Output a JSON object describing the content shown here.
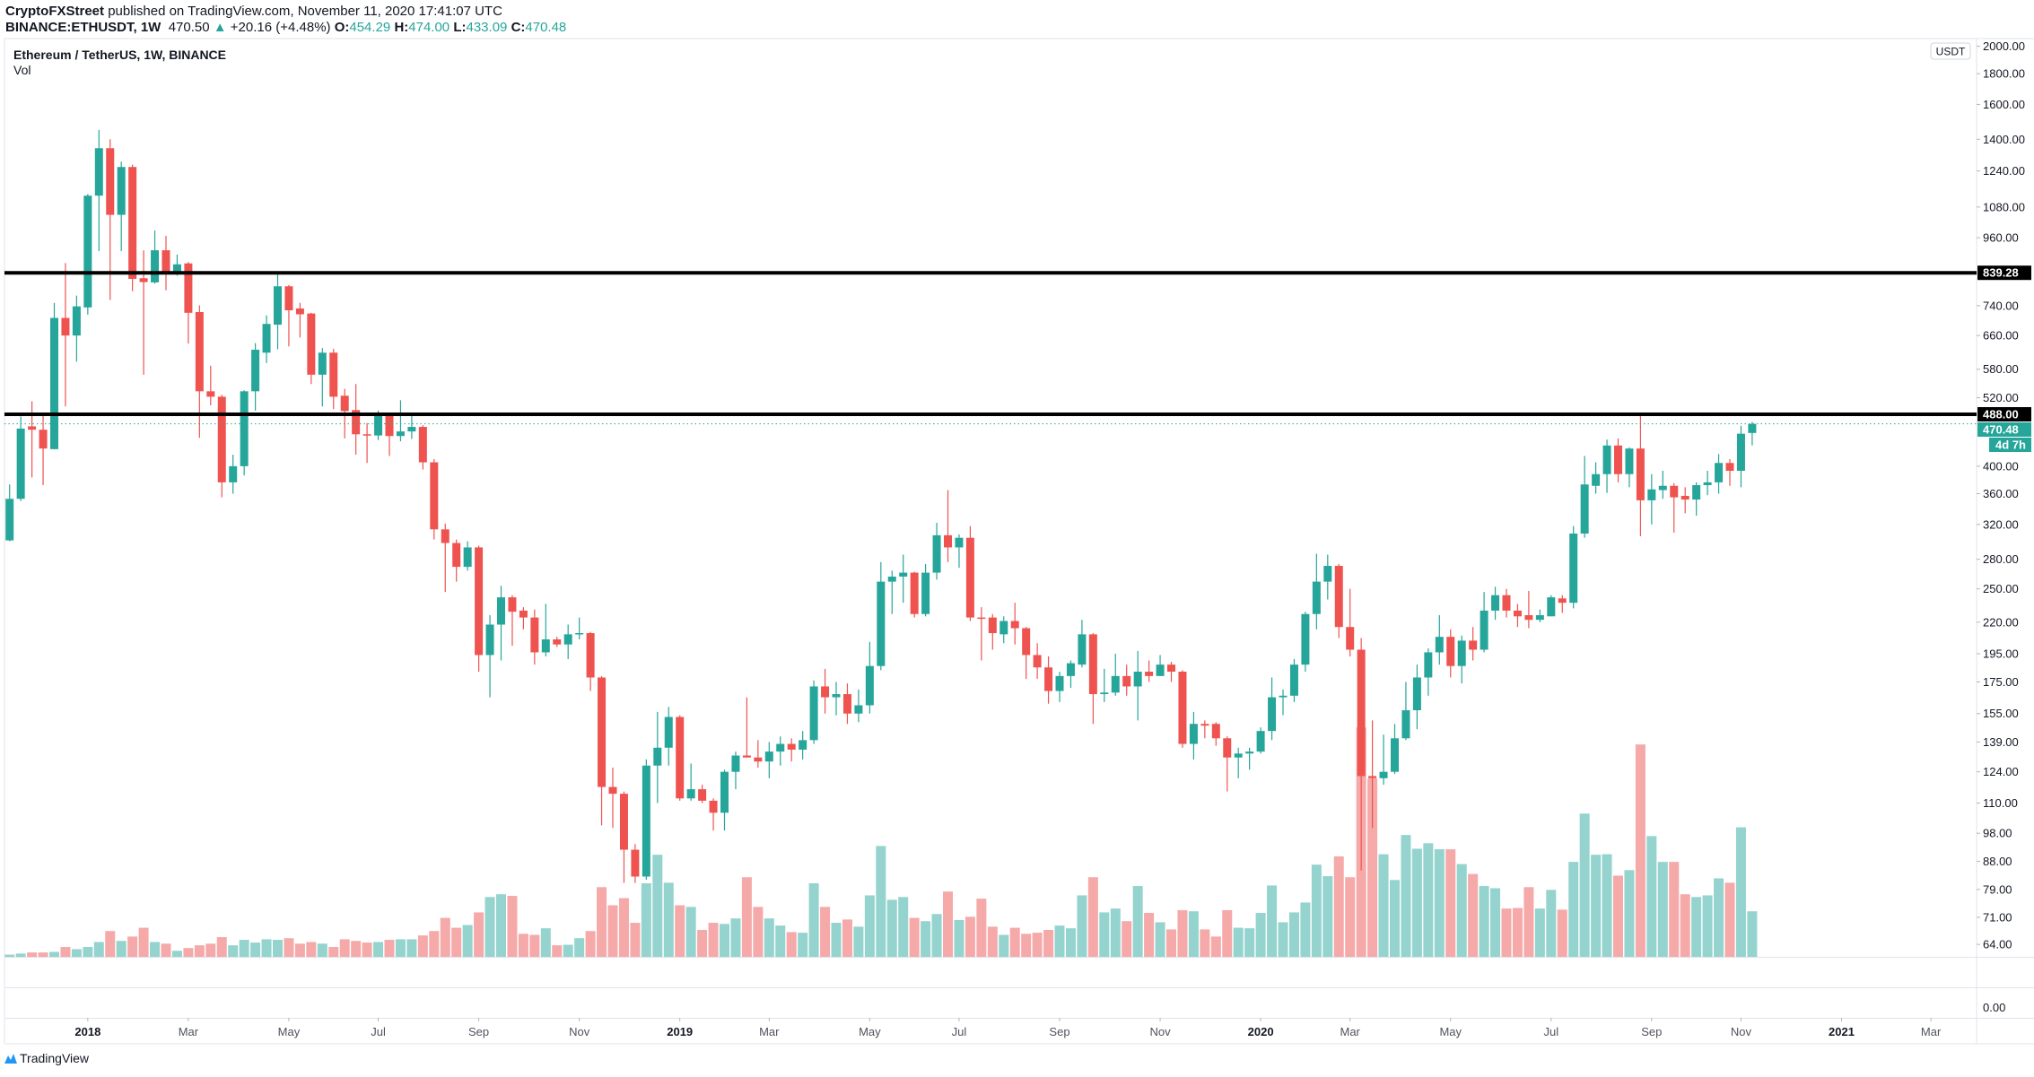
{
  "header": {
    "publisher": "CryptoFXStreet",
    "published_text": "published on TradingView.com, November 11, 2020 17:41:07 UTC",
    "symbol": "BINANCE:ETHUSDT, 1W",
    "last": "470.50",
    "direction_icon": "triangle-up-icon",
    "change": "+20.16 (+4.48%)",
    "o_label": "O:",
    "o": "454.29",
    "h_label": "H:",
    "h": "474.00",
    "l_label": "L:",
    "l": "433.09",
    "c_label": "C:",
    "c": "470.48"
  },
  "legend": {
    "title": "Ethereum / TetherUS, 1W, BINANCE",
    "vol": "Vol"
  },
  "price_axis": {
    "currency": "USDT",
    "vol_tick": "0.00"
  },
  "levels": [
    {
      "price": 839.28,
      "label": "839.28"
    },
    {
      "price": 488.0,
      "label": "488.00"
    }
  ],
  "last_price": {
    "price": 470.48,
    "label": "470.48",
    "countdown": "4d 7h"
  },
  "footer": {
    "brand": "TradingView"
  },
  "colors": {
    "up": "#26a69a",
    "down": "#ef5350",
    "vol_up": "#94d3ce",
    "vol_down": "#f5a9a9",
    "level": "#000000",
    "grid": "#e0e3eb"
  },
  "chart_data": {
    "type": "candlestick",
    "title": "Ethereum / TetherUS, 1W, BINANCE",
    "interval": "1W",
    "y_scale": "log",
    "ylim": [
      60,
      2000
    ],
    "grid": false,
    "y_ticks": [
      "2000.00",
      "1800.00",
      "1600.00",
      "1400.00",
      "1240.00",
      "1080.00",
      "960.00",
      "740.00",
      "660.00",
      "580.00",
      "520.00",
      "400.00",
      "360.00",
      "320.00",
      "280.00",
      "250.00",
      "220.00",
      "195.00",
      "175.00",
      "155.00",
      "139.00",
      "124.00",
      "110.00",
      "98.00",
      "88.00",
      "79.00",
      "71.00",
      "64.00"
    ],
    "x_ticks": [
      {
        "label": "2018",
        "date": "2018-01-01"
      },
      {
        "label": "Mar",
        "date": "2018-03-05"
      },
      {
        "label": "May",
        "date": "2018-05-07"
      },
      {
        "label": "Jul",
        "date": "2018-07-02"
      },
      {
        "label": "Sep",
        "date": "2018-09-03"
      },
      {
        "label": "Nov",
        "date": "2018-11-05"
      },
      {
        "label": "2019",
        "date": "2019-01-07"
      },
      {
        "label": "Mar",
        "date": "2019-03-04"
      },
      {
        "label": "May",
        "date": "2019-05-06"
      },
      {
        "label": "Jul",
        "date": "2019-07-01"
      },
      {
        "label": "Sep",
        "date": "2019-09-02"
      },
      {
        "label": "Nov",
        "date": "2019-11-04"
      },
      {
        "label": "2020",
        "date": "2020-01-06"
      },
      {
        "label": "Mar",
        "date": "2020-03-02"
      },
      {
        "label": "May",
        "date": "2020-05-04"
      },
      {
        "label": "Jul",
        "date": "2020-07-06"
      },
      {
        "label": "Sep",
        "date": "2020-09-07"
      },
      {
        "label": "Nov",
        "date": "2020-11-02"
      },
      {
        "label": "2021",
        "date": "2021-01-04"
      },
      {
        "label": "Mar",
        "date": "2021-03-01"
      }
    ],
    "columns": [
      "date",
      "open",
      "high",
      "low",
      "close",
      "volume_relative"
    ],
    "candles": [
      [
        "2017-11-13",
        301,
        373,
        300,
        353,
        4
      ],
      [
        "2017-11-20",
        353,
        484,
        350,
        462,
        6
      ],
      [
        "2017-11-27",
        466,
        513,
        383,
        460,
        8
      ],
      [
        "2017-12-04",
        460,
        488,
        372,
        428,
        8
      ],
      [
        "2017-12-11",
        427,
        748,
        427,
        706,
        9
      ],
      [
        "2017-12-18",
        706,
        871,
        503,
        660,
        18
      ],
      [
        "2017-12-25",
        660,
        769,
        597,
        738,
        14
      ],
      [
        "2018-01-01",
        735,
        1135,
        715,
        1128,
        18
      ],
      [
        "2018-01-08",
        1128,
        1451,
        912,
        1353,
        27
      ],
      [
        "2018-01-15",
        1353,
        1400,
        756,
        1048,
        47
      ],
      [
        "2018-01-22",
        1048,
        1285,
        912,
        1259,
        29
      ],
      [
        "2018-01-29",
        1259,
        1270,
        782,
        820,
        37
      ],
      [
        "2018-02-05",
        822,
        915,
        568,
        810,
        53
      ],
      [
        "2018-02-12",
        809,
        987,
        805,
        915,
        27
      ],
      [
        "2018-02-19",
        915,
        967,
        785,
        839,
        24
      ],
      [
        "2018-02-26",
        839,
        900,
        830,
        867,
        11
      ],
      [
        "2018-03-05",
        870,
        875,
        640,
        720,
        16
      ],
      [
        "2018-03-12",
        722,
        741,
        446,
        533,
        21
      ],
      [
        "2018-03-19",
        533,
        588,
        505,
        522,
        24
      ],
      [
        "2018-03-26",
        522,
        526,
        355,
        376,
        36
      ],
      [
        "2018-04-02",
        376,
        418,
        360,
        400,
        21
      ],
      [
        "2018-04-09",
        400,
        535,
        386,
        533,
        31
      ],
      [
        "2018-04-16",
        533,
        641,
        495,
        625,
        26
      ],
      [
        "2018-04-23",
        618,
        713,
        594,
        690,
        32
      ],
      [
        "2018-04-30",
        688,
        838,
        626,
        797,
        31
      ],
      [
        "2018-05-07",
        797,
        801,
        633,
        727,
        34
      ],
      [
        "2018-05-14",
        732,
        748,
        655,
        716,
        24
      ],
      [
        "2018-05-21",
        718,
        720,
        548,
        568,
        27
      ],
      [
        "2018-05-28",
        568,
        629,
        503,
        618,
        24
      ],
      [
        "2018-06-04",
        618,
        627,
        498,
        522,
        18
      ],
      [
        "2018-06-11",
        524,
        538,
        445,
        494,
        32
      ],
      [
        "2018-06-18",
        496,
        548,
        418,
        452,
        29
      ],
      [
        "2018-06-25",
        452,
        472,
        405,
        450,
        26
      ],
      [
        "2018-07-02",
        450,
        495,
        442,
        485,
        27
      ],
      [
        "2018-07-09",
        485,
        488,
        416,
        449,
        31
      ],
      [
        "2018-07-16",
        449,
        515,
        440,
        457,
        32
      ],
      [
        "2018-07-23",
        457,
        485,
        444,
        465,
        32
      ],
      [
        "2018-07-30",
        465,
        468,
        395,
        406,
        39
      ],
      [
        "2018-08-06",
        406,
        411,
        302,
        314,
        47
      ],
      [
        "2018-08-13",
        314,
        321,
        247,
        298,
        71
      ],
      [
        "2018-08-20",
        298,
        302,
        257,
        272,
        53
      ],
      [
        "2018-08-27",
        272,
        300,
        268,
        293,
        58
      ],
      [
        "2018-09-03",
        293,
        295,
        182,
        194,
        81
      ],
      [
        "2018-09-10",
        194,
        226,
        165,
        218,
        109
      ],
      [
        "2018-09-17",
        218,
        253,
        190,
        242,
        114
      ],
      [
        "2018-09-24",
        242,
        244,
        201,
        229,
        111
      ],
      [
        "2018-10-01",
        230,
        233,
        214,
        224,
        42
      ],
      [
        "2018-10-08",
        224,
        231,
        187,
        196,
        40
      ],
      [
        "2018-10-15",
        196,
        236,
        193,
        206,
        52
      ],
      [
        "2018-10-22",
        206,
        208,
        200,
        202,
        21
      ],
      [
        "2018-10-29",
        202,
        218,
        191,
        210,
        22
      ],
      [
        "2018-11-05",
        210,
        224,
        206,
        211,
        34
      ],
      [
        "2018-11-12",
        211,
        212,
        169,
        178,
        47
      ],
      [
        "2018-11-19",
        178,
        179,
        101,
        117,
        127
      ],
      [
        "2018-11-26",
        117,
        126,
        100,
        114,
        94
      ],
      [
        "2018-12-03",
        114,
        115,
        81,
        92,
        107
      ],
      [
        "2018-12-10",
        92,
        94,
        81,
        83,
        62
      ],
      [
        "2018-12-17",
        83,
        130,
        82,
        127,
        134
      ],
      [
        "2018-12-24",
        127,
        156,
        110,
        136,
        186
      ],
      [
        "2018-12-31",
        136,
        159,
        127,
        153,
        135
      ],
      [
        "2019-01-07",
        153,
        154,
        111,
        112,
        94
      ],
      [
        "2019-01-14",
        112,
        128,
        111,
        116,
        91
      ],
      [
        "2019-01-21",
        116,
        118,
        110,
        111,
        49
      ],
      [
        "2019-01-28",
        111,
        112,
        99,
        106,
        62
      ],
      [
        "2019-02-04",
        106,
        125,
        99,
        124,
        60
      ],
      [
        "2019-02-11",
        124,
        134,
        116,
        132,
        70
      ],
      [
        "2019-02-18",
        132,
        165,
        131,
        131,
        145
      ],
      [
        "2019-02-25",
        131,
        140,
        126,
        129,
        91
      ],
      [
        "2019-03-04",
        129,
        139,
        121,
        134,
        70
      ],
      [
        "2019-03-11",
        134,
        142,
        127,
        138,
        57
      ],
      [
        "2019-03-18",
        138,
        141,
        129,
        135,
        45
      ],
      [
        "2019-03-25",
        135,
        145,
        130,
        140,
        44
      ],
      [
        "2019-04-01",
        140,
        176,
        138,
        172,
        134
      ],
      [
        "2019-04-08",
        172,
        184,
        155,
        165,
        91
      ],
      [
        "2019-04-15",
        165,
        175,
        154,
        167,
        62
      ],
      [
        "2019-04-22",
        167,
        174,
        149,
        155,
        68
      ],
      [
        "2019-04-29",
        155,
        170,
        150,
        160,
        55
      ],
      [
        "2019-05-06",
        160,
        204,
        155,
        186,
        112
      ],
      [
        "2019-05-13",
        186,
        277,
        183,
        257,
        202
      ],
      [
        "2019-05-20",
        257,
        268,
        227,
        262,
        104
      ],
      [
        "2019-05-27",
        262,
        285,
        237,
        266,
        109
      ],
      [
        "2019-06-03",
        266,
        267,
        224,
        227,
        71
      ],
      [
        "2019-06-10",
        227,
        275,
        225,
        266,
        65
      ],
      [
        "2019-06-17",
        266,
        322,
        259,
        307,
        78
      ],
      [
        "2019-06-24",
        307,
        365,
        277,
        293,
        119
      ],
      [
        "2019-07-01",
        293,
        308,
        271,
        304,
        67
      ],
      [
        "2019-07-08",
        304,
        318,
        221,
        224,
        73
      ],
      [
        "2019-07-15",
        224,
        233,
        190,
        223,
        106
      ],
      [
        "2019-07-22",
        224,
        227,
        198,
        211,
        55
      ],
      [
        "2019-07-29",
        210,
        225,
        203,
        221,
        40
      ],
      [
        "2019-08-05",
        221,
        237,
        202,
        215,
        53
      ],
      [
        "2019-08-12",
        215,
        216,
        177,
        194,
        42
      ],
      [
        "2019-08-19",
        194,
        203,
        177,
        185,
        44
      ],
      [
        "2019-08-26",
        185,
        193,
        161,
        169,
        49
      ],
      [
        "2019-09-02",
        169,
        182,
        162,
        179,
        57
      ],
      [
        "2019-09-09",
        179,
        190,
        171,
        188,
        52
      ],
      [
        "2019-09-16",
        187,
        222,
        185,
        210,
        112
      ],
      [
        "2019-09-23",
        210,
        211,
        149,
        167,
        145
      ],
      [
        "2019-09-30",
        167,
        184,
        162,
        168,
        81
      ],
      [
        "2019-10-07",
        168,
        195,
        166,
        179,
        88
      ],
      [
        "2019-10-14",
        179,
        187,
        166,
        172,
        65
      ],
      [
        "2019-10-21",
        172,
        197,
        151,
        182,
        129
      ],
      [
        "2019-10-28",
        182,
        190,
        175,
        179,
        80
      ],
      [
        "2019-11-04",
        179,
        194,
        179,
        187,
        63
      ],
      [
        "2019-11-11",
        187,
        189,
        175,
        182,
        50
      ],
      [
        "2019-11-18",
        182,
        183,
        136,
        138,
        85
      ],
      [
        "2019-11-25",
        138,
        156,
        130,
        149,
        83
      ],
      [
        "2019-12-02",
        149,
        151,
        141,
        148,
        50
      ],
      [
        "2019-12-09",
        149,
        150,
        137,
        141,
        37
      ],
      [
        "2019-12-16",
        141,
        142,
        115,
        131,
        85
      ],
      [
        "2019-12-23",
        131,
        136,
        121,
        133,
        53
      ],
      [
        "2019-12-30",
        133,
        136,
        125,
        134,
        52
      ],
      [
        "2020-01-06",
        134,
        147,
        133,
        145,
        80
      ],
      [
        "2020-01-13",
        145,
        178,
        140,
        165,
        130
      ],
      [
        "2020-01-20",
        165,
        170,
        154,
        166,
        63
      ],
      [
        "2020-01-27",
        166,
        191,
        162,
        187,
        81
      ],
      [
        "2020-02-03",
        187,
        229,
        182,
        227,
        99
      ],
      [
        "2020-02-10",
        227,
        286,
        214,
        257,
        168
      ],
      [
        "2020-02-17",
        257,
        285,
        240,
        273,
        147
      ],
      [
        "2020-02-24",
        273,
        275,
        207,
        216,
        183
      ],
      [
        "2020-03-02",
        216,
        250,
        193,
        198,
        145
      ],
      [
        "2020-03-09",
        198,
        207,
        85,
        122,
        418
      ],
      [
        "2020-03-16",
        122,
        151,
        100,
        121,
        325
      ],
      [
        "2020-03-23",
        121,
        143,
        118,
        124,
        187
      ],
      [
        "2020-03-30",
        124,
        149,
        123,
        141,
        140
      ],
      [
        "2020-04-06",
        141,
        175,
        140,
        157,
        222
      ],
      [
        "2020-04-13",
        157,
        187,
        146,
        178,
        197
      ],
      [
        "2020-04-20",
        178,
        199,
        166,
        196,
        207
      ],
      [
        "2020-04-27",
        196,
        226,
        187,
        208,
        196
      ],
      [
        "2020-05-04",
        208,
        214,
        178,
        186,
        196
      ],
      [
        "2020-05-11",
        186,
        209,
        174,
        205,
        169
      ],
      [
        "2020-05-18",
        205,
        216,
        190,
        198,
        151
      ],
      [
        "2020-05-25",
        198,
        247,
        196,
        230,
        129
      ],
      [
        "2020-06-01",
        230,
        252,
        222,
        244,
        125
      ],
      [
        "2020-06-08",
        244,
        250,
        224,
        230,
        88
      ],
      [
        "2020-06-15",
        230,
        236,
        216,
        225,
        89
      ],
      [
        "2020-06-22",
        226,
        248,
        215,
        222,
        127
      ],
      [
        "2020-06-29",
        222,
        231,
        220,
        226,
        88
      ],
      [
        "2020-07-06",
        225,
        244,
        225,
        242,
        122
      ],
      [
        "2020-07-13",
        241,
        244,
        228,
        237,
        86
      ],
      [
        "2020-07-20",
        237,
        318,
        232,
        309,
        173
      ],
      [
        "2020-07-27",
        309,
        416,
        304,
        373,
        261
      ],
      [
        "2020-08-03",
        371,
        406,
        360,
        388,
        186
      ],
      [
        "2020-08-10",
        388,
        443,
        361,
        433,
        187
      ],
      [
        "2020-08-17",
        433,
        445,
        376,
        388,
        148
      ],
      [
        "2020-08-24",
        388,
        430,
        369,
        428,
        158
      ],
      [
        "2020-08-31",
        428,
        488,
        306,
        351,
        387
      ],
      [
        "2020-09-07",
        351,
        388,
        320,
        366,
        220
      ],
      [
        "2020-09-14",
        365,
        393,
        353,
        371,
        173
      ],
      [
        "2020-09-21",
        371,
        375,
        310,
        355,
        173
      ],
      [
        "2020-09-28",
        357,
        369,
        334,
        352,
        114
      ],
      [
        "2020-10-05",
        352,
        376,
        331,
        372,
        109
      ],
      [
        "2020-10-12",
        372,
        393,
        358,
        376,
        112
      ],
      [
        "2020-10-19",
        376,
        419,
        360,
        405,
        143
      ],
      [
        "2020-10-26",
        405,
        411,
        371,
        393,
        135
      ],
      [
        "2020-11-02",
        393,
        467,
        369,
        453,
        236
      ],
      [
        "2020-11-09",
        454.29,
        474.0,
        433.09,
        470.48,
        83
      ]
    ]
  }
}
